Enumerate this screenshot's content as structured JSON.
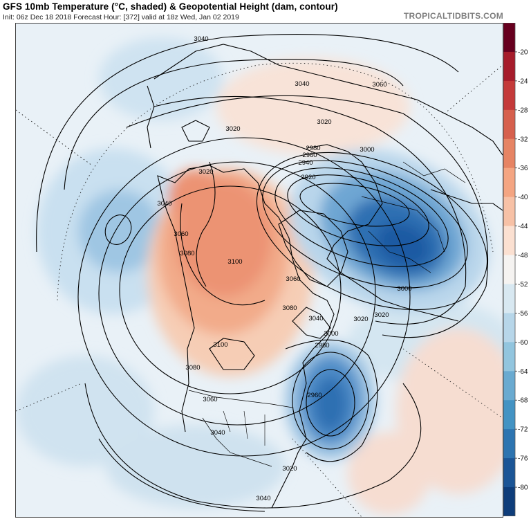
{
  "header": {
    "title": "GFS 10mb Temperature (°C, shaded) & Geopotential Height (dam, contour)",
    "subtitle": "Init: 06z Dec 18 2018   Forecast Hour: [372]   valid at 18z Wed, Jan 02 2019",
    "credit": "TROPICALTIDBITS.COM"
  },
  "colorbar": {
    "ticks": [
      "-20",
      "-24",
      "-28",
      "-32",
      "-36",
      "-40",
      "-44",
      "-48",
      "-52",
      "-56",
      "-60",
      "-64",
      "-68",
      "-72",
      "-76",
      "-80"
    ],
    "colors": [
      "#67001f",
      "#a61c2b",
      "#c43a3a",
      "#d6604d",
      "#e68464",
      "#f4a582",
      "#f7c1a6",
      "#fbe0d1",
      "#f5f3f1",
      "#d8e8f1",
      "#b7d6e9",
      "#92c5de",
      "#6aaad0",
      "#4393c3",
      "#2d74b0",
      "#1b5596",
      "#0e3d7a"
    ]
  },
  "map": {
    "colors": {
      "background_cool": "#e9f1f7",
      "warm_light": "#f6cdb5",
      "warm_mid": "#f2ab8a",
      "warm_strong": "#ec9373",
      "cold_light": "#b9d6eb",
      "cold_mid": "#6ea6d3",
      "cold_strong": "#2f6fb2",
      "cold_core": "#1f5aa3"
    },
    "contour_labels": [
      {
        "id": "c1",
        "text": "3040"
      },
      {
        "id": "c2",
        "text": "3040"
      },
      {
        "id": "c3",
        "text": "3060"
      },
      {
        "id": "c4",
        "text": "3020"
      },
      {
        "id": "c5",
        "text": "3020"
      },
      {
        "id": "c6",
        "text": "3020"
      },
      {
        "id": "c7",
        "text": "2980"
      },
      {
        "id": "c8",
        "text": "2960"
      },
      {
        "id": "c9",
        "text": "2940"
      },
      {
        "id": "c10",
        "text": "2920"
      },
      {
        "id": "c11",
        "text": "3000"
      },
      {
        "id": "c12",
        "text": "3040"
      },
      {
        "id": "c13",
        "text": "3060"
      },
      {
        "id": "c14",
        "text": "3080"
      },
      {
        "id": "c15",
        "text": "3100"
      },
      {
        "id": "c16",
        "text": "3000"
      },
      {
        "id": "c17",
        "text": "3020"
      },
      {
        "id": "c18",
        "text": "3080"
      },
      {
        "id": "c19",
        "text": "3060"
      },
      {
        "id": "c20",
        "text": "3040"
      },
      {
        "id": "c21",
        "text": "3020"
      },
      {
        "id": "c22",
        "text": "3000"
      },
      {
        "id": "c23",
        "text": "2980"
      },
      {
        "id": "c24",
        "text": "3100"
      },
      {
        "id": "c25",
        "text": "3080"
      },
      {
        "id": "c26",
        "text": "3060"
      },
      {
        "id": "c27",
        "text": "3040"
      },
      {
        "id": "c28",
        "text": "2960"
      },
      {
        "id": "c29",
        "text": "3020"
      },
      {
        "id": "c30",
        "text": "3040"
      }
    ]
  }
}
